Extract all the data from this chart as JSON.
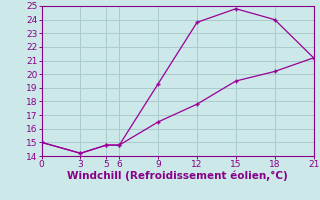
{
  "xlabel": "Windchill (Refroidissement éolien,°C)",
  "line1_x": [
    0,
    3,
    5,
    6,
    9,
    12,
    15,
    18,
    21
  ],
  "line1_y": [
    15,
    14.2,
    14.8,
    14.8,
    19.3,
    23.8,
    24.8,
    24.0,
    21.2
  ],
  "line2_x": [
    0,
    3,
    5,
    6,
    9,
    12,
    15,
    18,
    21
  ],
  "line2_y": [
    15,
    14.2,
    14.8,
    14.8,
    16.5,
    17.8,
    19.5,
    20.2,
    21.2
  ],
  "xlim": [
    0,
    21
  ],
  "ylim": [
    14,
    25
  ],
  "xticks": [
    0,
    3,
    5,
    6,
    9,
    12,
    15,
    18,
    21
  ],
  "yticks": [
    14,
    15,
    16,
    17,
    18,
    19,
    20,
    21,
    22,
    23,
    24,
    25
  ],
  "line_color": "#990099",
  "bg_color": "#cce8e8",
  "grid_color": "#aacccc",
  "tick_color": "#880088",
  "label_color": "#880088",
  "font_size": 6.5,
  "xlabel_fontsize": 7.5
}
